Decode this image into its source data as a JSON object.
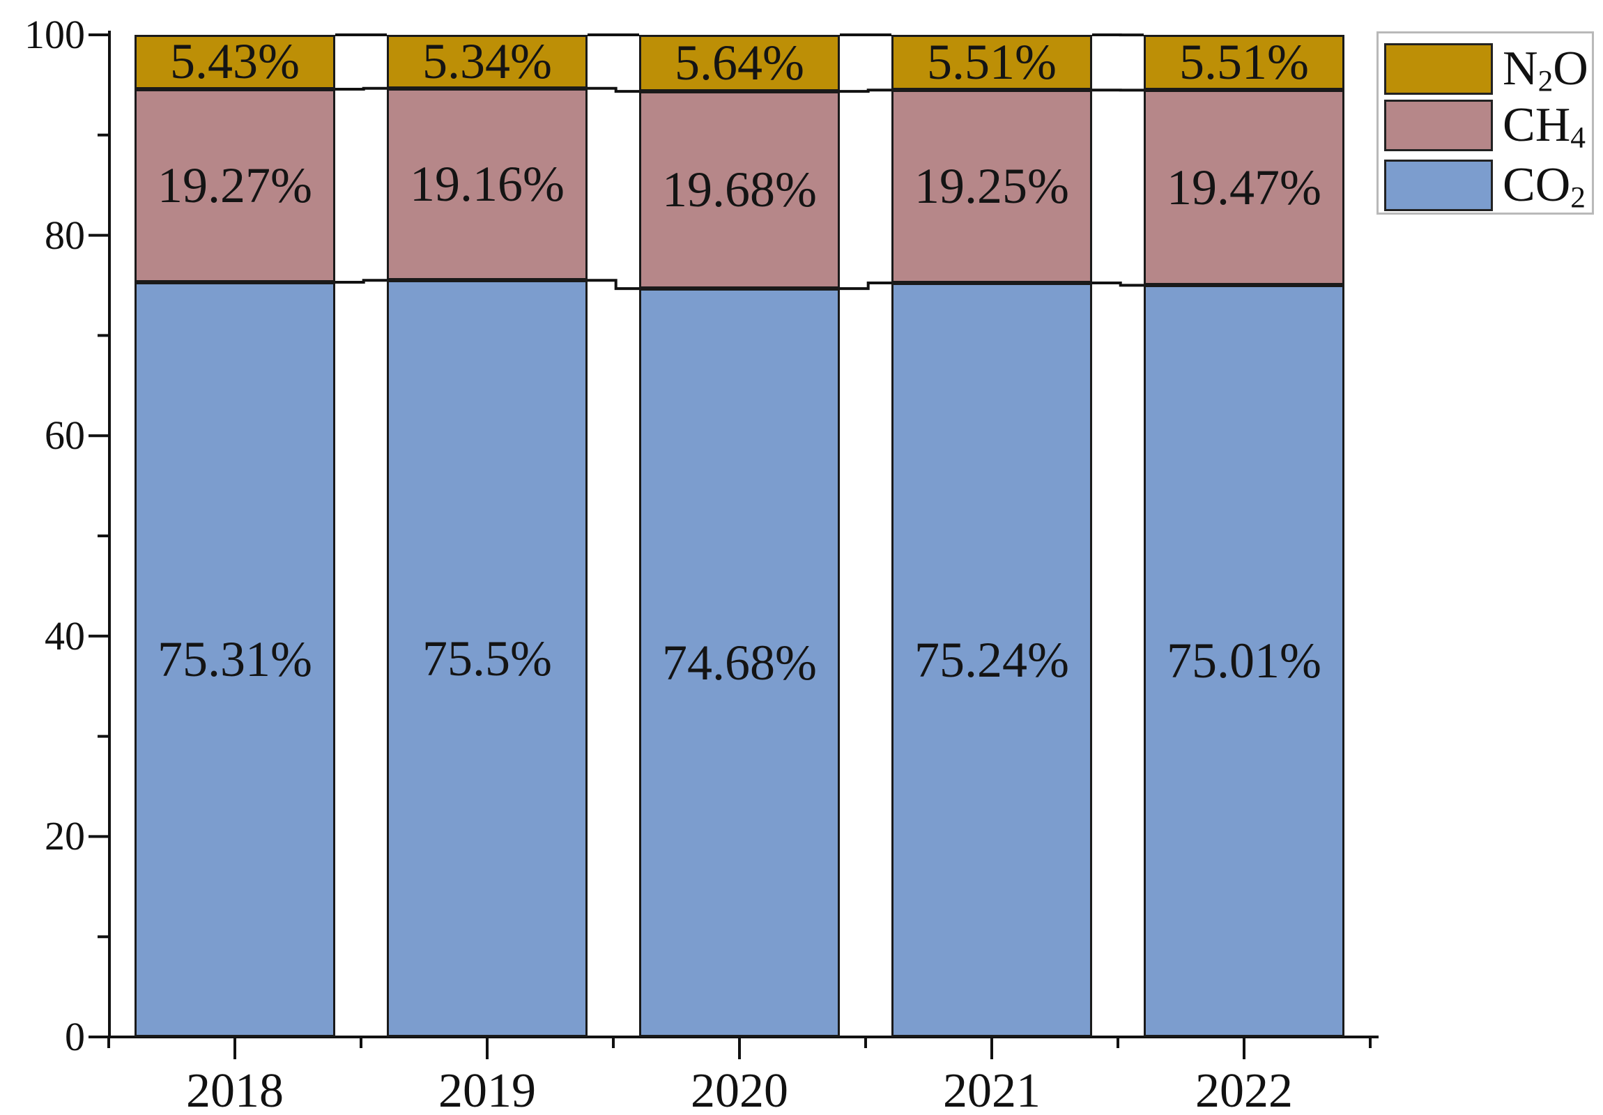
{
  "chart_data": {
    "type": "bar",
    "stacked": true,
    "title": "",
    "xlabel": "",
    "ylabel": "",
    "unit": "%",
    "categories": [
      "2018",
      "2019",
      "2020",
      "2021",
      "2022"
    ],
    "series": [
      {
        "name": "CO2",
        "display": [
          {
            "t": "CO"
          },
          {
            "t": "2",
            "sub": true
          }
        ],
        "color": "#7C9DCE",
        "values": [
          75.31,
          75.5,
          74.68,
          75.24,
          75.01
        ],
        "labels": [
          "75.31%",
          "75.5%",
          "74.68%",
          "75.24%",
          "75.01%"
        ]
      },
      {
        "name": "CH4",
        "display": [
          {
            "t": "CH"
          },
          {
            "t": "4",
            "sub": true
          }
        ],
        "color": "#B68789",
        "values": [
          19.27,
          19.16,
          19.68,
          19.25,
          19.47
        ],
        "labels": [
          "19.27%",
          "19.16%",
          "19.68%",
          "19.25%",
          "19.47%"
        ]
      },
      {
        "name": "N2O",
        "display": [
          {
            "t": "N"
          },
          {
            "t": "2",
            "sub": true
          },
          {
            "t": "O"
          }
        ],
        "color": "#BD8F06",
        "values": [
          5.43,
          5.34,
          5.64,
          5.51,
          5.51
        ],
        "labels": [
          "5.43%",
          "5.34%",
          "5.64%",
          "5.51%",
          "5.51%"
        ]
      }
    ],
    "ylim": [
      0,
      100
    ],
    "yticks_major": [
      0,
      20,
      40,
      60,
      80,
      100
    ],
    "yticks_minor": [
      10,
      30,
      50,
      70,
      90
    ],
    "legend": {
      "position": "top-right",
      "order": [
        "N2O",
        "CH4",
        "CO2"
      ]
    },
    "colors": {
      "axis": "#111111",
      "segment_border": "#1a1a1a",
      "connector": "#111111",
      "legend_border": "#b9b9b9",
      "background": "#ffffff",
      "text": "#141414"
    }
  }
}
